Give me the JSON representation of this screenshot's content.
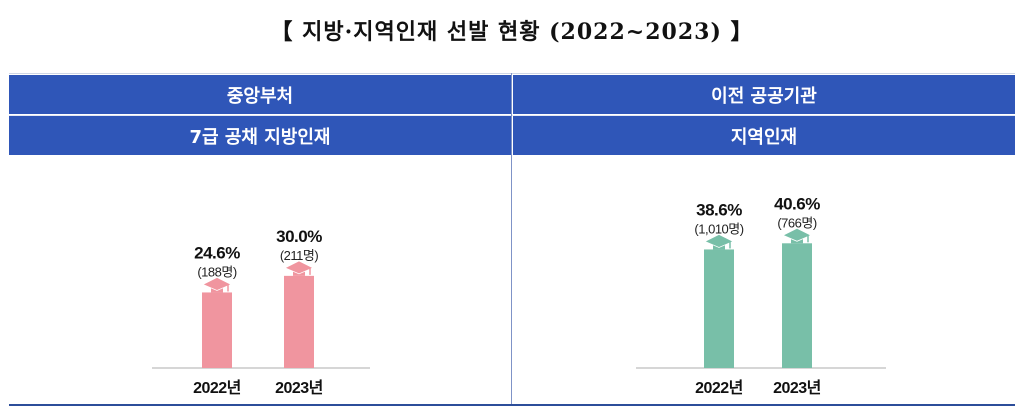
{
  "title": "【 지방·지역인재 선발 현황 (2022~2023) 】",
  "left": {
    "header": "중앙부처",
    "subheader": "7급 공채 지방인재",
    "chart_data": {
      "type": "bar",
      "categories": [
        "2022년",
        "2023년"
      ],
      "values": [
        24.6,
        30.0
      ],
      "value_labels": [
        "24.6%",
        "30.0%"
      ],
      "count_labels": [
        "(188명)",
        "(211명)"
      ],
      "ylim": [
        0,
        70
      ],
      "color": "#f0959f"
    }
  },
  "right": {
    "header": "이전 공공기관",
    "subheader": "지역인재",
    "chart_data": {
      "type": "bar",
      "categories": [
        "2022년",
        "2023년"
      ],
      "values": [
        38.6,
        40.6
      ],
      "value_labels": [
        "38.6%",
        "40.6%"
      ],
      "count_labels": [
        "(1,010명)",
        "(766명)"
      ],
      "ylim": [
        0,
        70
      ],
      "color": "#78bfa8"
    }
  },
  "icon": "graduation-cap-icon"
}
